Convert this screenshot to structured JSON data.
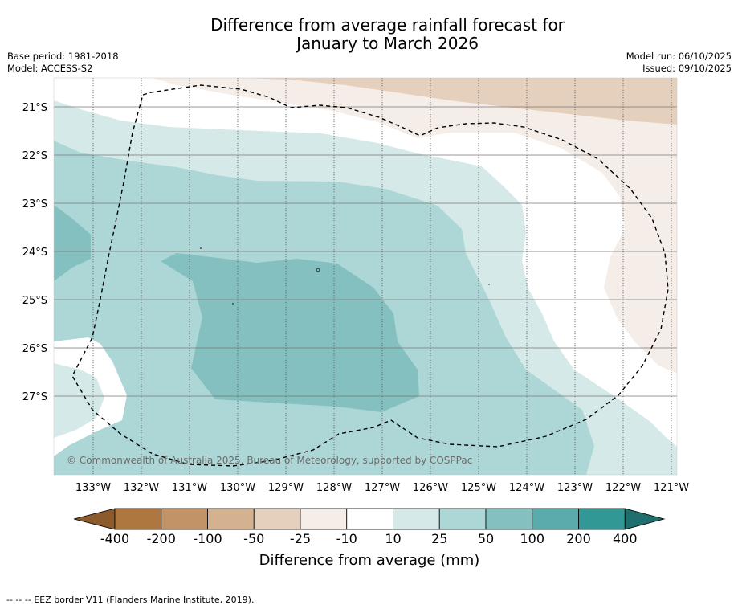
{
  "header": {
    "title_line1": "Difference from average rainfall forecast for",
    "title_line2": "January to March 2026",
    "base_period": "Base period: 1981-2018",
    "model": "Model: ACCESS-S2",
    "model_run": "Model run: 06/10/2025",
    "issued": "Issued: 09/10/2025"
  },
  "map": {
    "copyright": "© Commonwealth of Australia 2025, Bureau of Meteorology, supported by COSPPac",
    "lat_labels": [
      "21°S",
      "22°S",
      "23°S",
      "24°S",
      "25°S",
      "26°S",
      "27°S"
    ],
    "lon_labels": [
      "133°W",
      "132°W",
      "131°W",
      "130°W",
      "129°W",
      "128°W",
      "127°W",
      "126°W",
      "125°W",
      "124°W",
      "123°W",
      "122°W",
      "121°W"
    ]
  },
  "legend": {
    "title": "Difference from average (mm)",
    "ticks": [
      "-400",
      "-200",
      "-100",
      "-50",
      "-25",
      "-10",
      "10",
      "25",
      "50",
      "100",
      "200",
      "400"
    ],
    "colors": {
      "below_400": "#8c5a2b",
      "n400_200": "#ad773f",
      "n200_100": "#c29367",
      "n100_50": "#d4b18f",
      "n50_25": "#e5d0bd",
      "n25_10": "#f5ede8",
      "n10_10": "#ffffff",
      "p10_25": "#d5e9e8",
      "p25_50": "#add7d6",
      "p50_100": "#84c0c0",
      "p100_200": "#5aabab",
      "p200_400": "#329896",
      "above_400": "#1f6f6e"
    }
  },
  "footer": {
    "eez_note": "--  --  -- EEZ border V11 (Flanders Marine Institute, 2019)."
  }
}
